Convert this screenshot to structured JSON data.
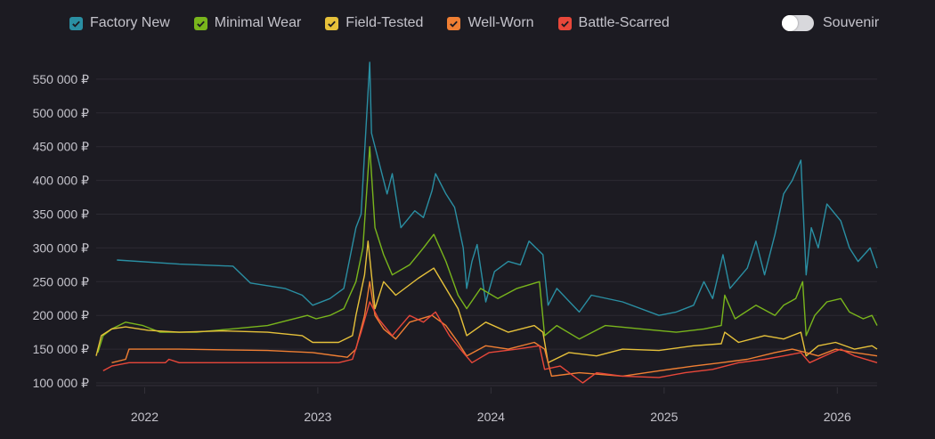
{
  "legend": [
    {
      "label": "Factory New",
      "color": "#2a8fa3"
    },
    {
      "label": "Minimal Wear",
      "color": "#79b51c"
    },
    {
      "label": "Field-Tested",
      "color": "#e6c13a"
    },
    {
      "label": "Well-Worn",
      "color": "#f07f33"
    },
    {
      "label": "Battle-Scarred",
      "color": "#e8473a"
    }
  ],
  "souvenir": {
    "label": "Souvenir",
    "on": false
  },
  "chart_data": {
    "type": "line",
    "title": "",
    "xlabel": "",
    "ylabel": "",
    "xlim": [
      2021.72,
      2026.23
    ],
    "ylim": [
      90000,
      575000
    ],
    "grid": true,
    "legend_position": "top",
    "x_ticks": [
      {
        "value": 2022,
        "label": "2022"
      },
      {
        "value": 2023,
        "label": "2023"
      },
      {
        "value": 2024,
        "label": "2024"
      },
      {
        "value": 2025,
        "label": "2025"
      },
      {
        "value": 2026,
        "label": "2026"
      }
    ],
    "y_ticks": [
      {
        "value": 100000,
        "label": "100 000 ₽"
      },
      {
        "value": 150000,
        "label": "150 000 ₽"
      },
      {
        "value": 200000,
        "label": "200 000 ₽"
      },
      {
        "value": 250000,
        "label": "250 000 ₽"
      },
      {
        "value": 300000,
        "label": "300 000 ₽"
      },
      {
        "value": 350000,
        "label": "350 000 ₽"
      },
      {
        "value": 400000,
        "label": "400 000 ₽"
      },
      {
        "value": 450000,
        "label": "450 000 ₽"
      },
      {
        "value": 500000,
        "label": "500 000 ₽"
      },
      {
        "value": 550000,
        "label": "550 000 ₽"
      }
    ],
    "series": [
      {
        "name": "Factory New",
        "color": "#2a8fa3",
        "points": [
          [
            2021.84,
            282000
          ],
          [
            2022.2,
            276000
          ],
          [
            2022.51,
            273000
          ],
          [
            2022.61,
            248000
          ],
          [
            2022.81,
            240000
          ],
          [
            2022.91,
            230000
          ],
          [
            2022.97,
            215000
          ],
          [
            2023.07,
            225000
          ],
          [
            2023.15,
            240000
          ],
          [
            2023.22,
            330000
          ],
          [
            2023.25,
            350000
          ],
          [
            2023.3,
            575000
          ],
          [
            2023.31,
            470000
          ],
          [
            2023.35,
            430000
          ],
          [
            2023.4,
            380000
          ],
          [
            2023.43,
            410000
          ],
          [
            2023.48,
            330000
          ],
          [
            2023.56,
            355000
          ],
          [
            2023.61,
            345000
          ],
          [
            2023.66,
            385000
          ],
          [
            2023.68,
            410000
          ],
          [
            2023.74,
            380000
          ],
          [
            2023.79,
            360000
          ],
          [
            2023.84,
            300000
          ],
          [
            2023.86,
            240000
          ],
          [
            2023.89,
            280000
          ],
          [
            2023.92,
            305000
          ],
          [
            2023.97,
            220000
          ],
          [
            2024.02,
            265000
          ],
          [
            2024.1,
            280000
          ],
          [
            2024.17,
            275000
          ],
          [
            2024.22,
            310000
          ],
          [
            2024.3,
            290000
          ],
          [
            2024.33,
            215000
          ],
          [
            2024.38,
            240000
          ],
          [
            2024.51,
            205000
          ],
          [
            2024.58,
            230000
          ],
          [
            2024.76,
            220000
          ],
          [
            2024.97,
            200000
          ],
          [
            2025.07,
            205000
          ],
          [
            2025.17,
            215000
          ],
          [
            2025.23,
            250000
          ],
          [
            2025.28,
            225000
          ],
          [
            2025.34,
            290000
          ],
          [
            2025.38,
            240000
          ],
          [
            2025.48,
            270000
          ],
          [
            2025.53,
            310000
          ],
          [
            2025.58,
            260000
          ],
          [
            2025.64,
            320000
          ],
          [
            2025.69,
            380000
          ],
          [
            2025.74,
            400000
          ],
          [
            2025.79,
            430000
          ],
          [
            2025.82,
            260000
          ],
          [
            2025.85,
            330000
          ],
          [
            2025.89,
            300000
          ],
          [
            2025.94,
            365000
          ],
          [
            2026.02,
            340000
          ],
          [
            2026.07,
            300000
          ],
          [
            2026.12,
            280000
          ],
          [
            2026.19,
            300000
          ],
          [
            2026.23,
            270000
          ]
        ]
      },
      {
        "name": "Minimal Wear",
        "color": "#79b51c",
        "points": [
          [
            2021.73,
            145000
          ],
          [
            2021.76,
            170000
          ],
          [
            2021.81,
            180000
          ],
          [
            2021.89,
            190000
          ],
          [
            2021.99,
            185000
          ],
          [
            2022.09,
            175000
          ],
          [
            2022.3,
            175000
          ],
          [
            2022.5,
            180000
          ],
          [
            2022.71,
            185000
          ],
          [
            2022.94,
            200000
          ],
          [
            2022.99,
            195000
          ],
          [
            2023.07,
            200000
          ],
          [
            2023.15,
            210000
          ],
          [
            2023.22,
            250000
          ],
          [
            2023.26,
            300000
          ],
          [
            2023.3,
            450000
          ],
          [
            2023.33,
            330000
          ],
          [
            2023.38,
            290000
          ],
          [
            2023.43,
            260000
          ],
          [
            2023.53,
            275000
          ],
          [
            2023.61,
            300000
          ],
          [
            2023.67,
            320000
          ],
          [
            2023.74,
            280000
          ],
          [
            2023.81,
            230000
          ],
          [
            2023.86,
            210000
          ],
          [
            2023.94,
            240000
          ],
          [
            2024.04,
            225000
          ],
          [
            2024.15,
            240000
          ],
          [
            2024.28,
            250000
          ],
          [
            2024.31,
            170000
          ],
          [
            2024.38,
            185000
          ],
          [
            2024.51,
            165000
          ],
          [
            2024.66,
            185000
          ],
          [
            2024.87,
            180000
          ],
          [
            2025.07,
            175000
          ],
          [
            2025.23,
            180000
          ],
          [
            2025.33,
            185000
          ],
          [
            2025.35,
            230000
          ],
          [
            2025.41,
            195000
          ],
          [
            2025.53,
            215000
          ],
          [
            2025.64,
            200000
          ],
          [
            2025.69,
            215000
          ],
          [
            2025.76,
            225000
          ],
          [
            2025.8,
            250000
          ],
          [
            2025.82,
            170000
          ],
          [
            2025.87,
            200000
          ],
          [
            2025.94,
            220000
          ],
          [
            2026.02,
            225000
          ],
          [
            2026.07,
            205000
          ],
          [
            2026.15,
            195000
          ],
          [
            2026.2,
            200000
          ],
          [
            2026.23,
            185000
          ]
        ]
      },
      {
        "name": "Field-Tested",
        "color": "#e6c13a",
        "points": [
          [
            2021.72,
            140000
          ],
          [
            2021.75,
            170000
          ],
          [
            2021.81,
            180000
          ],
          [
            2021.89,
            183000
          ],
          [
            2022.02,
            178000
          ],
          [
            2022.2,
            175000
          ],
          [
            2022.45,
            177000
          ],
          [
            2022.71,
            175000
          ],
          [
            2022.91,
            170000
          ],
          [
            2022.97,
            160000
          ],
          [
            2023.12,
            160000
          ],
          [
            2023.2,
            170000
          ],
          [
            2023.22,
            200000
          ],
          [
            2023.27,
            260000
          ],
          [
            2023.29,
            310000
          ],
          [
            2023.33,
            210000
          ],
          [
            2023.38,
            250000
          ],
          [
            2023.45,
            230000
          ],
          [
            2023.58,
            255000
          ],
          [
            2023.67,
            270000
          ],
          [
            2023.74,
            240000
          ],
          [
            2023.81,
            210000
          ],
          [
            2023.86,
            170000
          ],
          [
            2023.97,
            190000
          ],
          [
            2024.1,
            175000
          ],
          [
            2024.25,
            185000
          ],
          [
            2024.3,
            175000
          ],
          [
            2024.33,
            130000
          ],
          [
            2024.45,
            145000
          ],
          [
            2024.61,
            140000
          ],
          [
            2024.76,
            150000
          ],
          [
            2024.97,
            148000
          ],
          [
            2025.17,
            155000
          ],
          [
            2025.33,
            158000
          ],
          [
            2025.35,
            175000
          ],
          [
            2025.43,
            160000
          ],
          [
            2025.58,
            170000
          ],
          [
            2025.69,
            165000
          ],
          [
            2025.79,
            175000
          ],
          [
            2025.82,
            140000
          ],
          [
            2025.89,
            155000
          ],
          [
            2025.99,
            160000
          ],
          [
            2026.1,
            150000
          ],
          [
            2026.2,
            155000
          ],
          [
            2026.23,
            150000
          ]
        ]
      },
      {
        "name": "Well-Worn",
        "color": "#f07f33",
        "points": [
          [
            2021.81,
            130000
          ],
          [
            2021.89,
            135000
          ],
          [
            2021.91,
            150000
          ],
          [
            2022.2,
            150000
          ],
          [
            2022.71,
            148000
          ],
          [
            2022.97,
            145000
          ],
          [
            2023.17,
            138000
          ],
          [
            2023.22,
            150000
          ],
          [
            2023.27,
            200000
          ],
          [
            2023.3,
            250000
          ],
          [
            2023.33,
            200000
          ],
          [
            2023.38,
            180000
          ],
          [
            2023.45,
            165000
          ],
          [
            2023.53,
            190000
          ],
          [
            2023.66,
            200000
          ],
          [
            2023.74,
            185000
          ],
          [
            2023.81,
            160000
          ],
          [
            2023.86,
            140000
          ],
          [
            2023.97,
            155000
          ],
          [
            2024.1,
            150000
          ],
          [
            2024.25,
            160000
          ],
          [
            2024.31,
            150000
          ],
          [
            2024.35,
            110000
          ],
          [
            2024.51,
            115000
          ],
          [
            2024.76,
            110000
          ],
          [
            2024.97,
            118000
          ],
          [
            2025.17,
            125000
          ],
          [
            2025.33,
            130000
          ],
          [
            2025.48,
            135000
          ],
          [
            2025.64,
            145000
          ],
          [
            2025.74,
            150000
          ],
          [
            2025.82,
            145000
          ],
          [
            2025.89,
            140000
          ],
          [
            2025.99,
            150000
          ],
          [
            2026.1,
            145000
          ],
          [
            2026.23,
            140000
          ]
        ]
      },
      {
        "name": "Battle-Scarred",
        "color": "#e8473a",
        "points": [
          [
            2021.76,
            118000
          ],
          [
            2021.81,
            125000
          ],
          [
            2021.91,
            130000
          ],
          [
            2022.12,
            130000
          ],
          [
            2022.14,
            135000
          ],
          [
            2022.2,
            130000
          ],
          [
            2022.71,
            130000
          ],
          [
            2023.12,
            130000
          ],
          [
            2023.2,
            135000
          ],
          [
            2023.25,
            175000
          ],
          [
            2023.3,
            220000
          ],
          [
            2023.35,
            195000
          ],
          [
            2023.43,
            170000
          ],
          [
            2023.53,
            200000
          ],
          [
            2023.61,
            190000
          ],
          [
            2023.68,
            205000
          ],
          [
            2023.76,
            170000
          ],
          [
            2023.84,
            145000
          ],
          [
            2023.89,
            130000
          ],
          [
            2023.99,
            145000
          ],
          [
            2024.15,
            150000
          ],
          [
            2024.28,
            155000
          ],
          [
            2024.31,
            120000
          ],
          [
            2024.4,
            125000
          ],
          [
            2024.53,
            100000
          ],
          [
            2024.61,
            115000
          ],
          [
            2024.76,
            110000
          ],
          [
            2024.97,
            108000
          ],
          [
            2025.12,
            115000
          ],
          [
            2025.28,
            120000
          ],
          [
            2025.43,
            130000
          ],
          [
            2025.58,
            135000
          ],
          [
            2025.69,
            140000
          ],
          [
            2025.79,
            145000
          ],
          [
            2025.84,
            130000
          ],
          [
            2025.97,
            145000
          ],
          [
            2026.02,
            150000
          ],
          [
            2026.1,
            140000
          ],
          [
            2026.23,
            130000
          ]
        ]
      }
    ]
  }
}
